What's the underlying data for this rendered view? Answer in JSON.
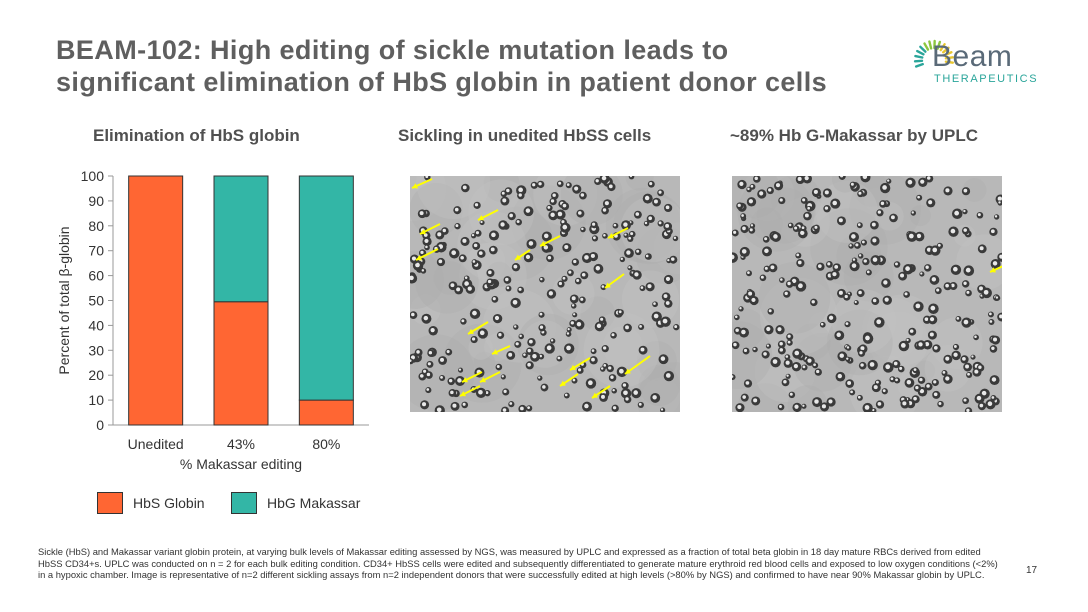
{
  "slide": {
    "title_line1": "BEAM-102: High editing of sickle mutation leads to",
    "title_line2": "significant elimination of HbS globin in patient donor cells",
    "logo_word": "Beam",
    "logo_sub": "THERAPEUTICS",
    "page_number": "17"
  },
  "panels": {
    "chart_title": "Elimination of HbS globin",
    "micro1_title": "Sickling in unedited HbSS cells",
    "micro2_title": "~89% Hb G-Makassar by UPLC"
  },
  "legend": {
    "hbs": "HbS Globin",
    "hbg": "HbG Makassar"
  },
  "colors": {
    "hbs": "#ff6633",
    "hbg": "#33b6a6",
    "arrow": "#ffff00",
    "logo_accent": "#2aa59a"
  },
  "chart_data": {
    "type": "bar",
    "stacked": true,
    "categories": [
      "Unedited",
      "43%",
      "80%"
    ],
    "series": [
      {
        "name": "HbS Globin",
        "values": [
          100,
          49.5,
          10
        ]
      },
      {
        "name": "HbG Makassar",
        "values": [
          0,
          50.5,
          90
        ]
      }
    ],
    "xlabel": "% Makassar editing",
    "ylabel": "Percent of total β-globin",
    "ylim": [
      0,
      100
    ],
    "yticks": [
      0,
      10,
      20,
      30,
      40,
      50,
      60,
      70,
      80,
      90,
      100
    ],
    "grid": false,
    "legend_position": "bottom"
  },
  "footnote": "Sickle (HbS) and Makassar variant globin protein, at varying bulk levels of Makassar editing assessed by NGS, was measured by UPLC and expressed as a fraction of total beta globin in 18 day mature RBCs derived from edited HbSS CD34+s.  UPLC was conducted on n = 2 for each bulk editing condition. CD34+ HbSS cells were edited and subsequently differentiated to generate mature erythroid red blood cells and exposed to low oxygen conditions (<2%) in a hypoxic chamber.  Image is representative of n=2 different sickling assays from n=2 independent donors that were successfully edited at high levels (>80% by NGS) and confirmed to have near 90% Makassar globin by UPLC."
}
